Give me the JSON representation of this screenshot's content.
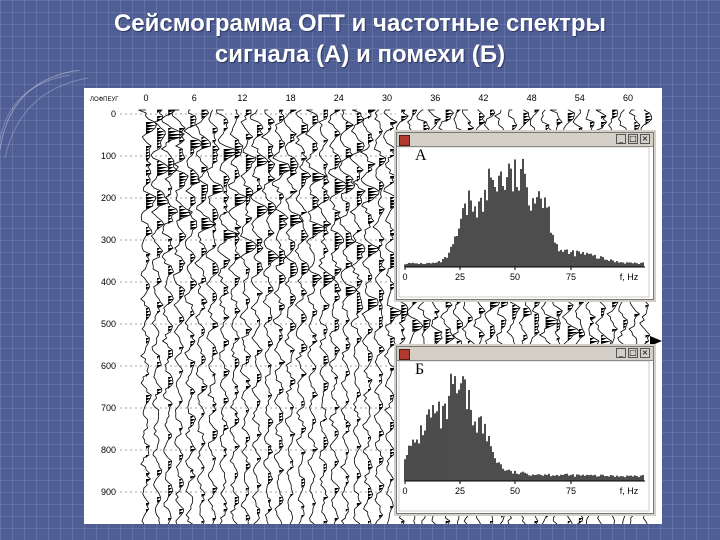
{
  "slide": {
    "title_line1": "Сейсмограмма ОГТ и частотные спектры",
    "title_line2": "сигнала (А) и помехи (Б)"
  },
  "seismogram": {
    "corner_label": "ЛОФПЕУГ",
    "x_ticks": [
      "0",
      "6",
      "12",
      "18",
      "24",
      "30",
      "36",
      "42",
      "48",
      "54",
      "60"
    ],
    "y_ticks": [
      "0",
      "100",
      "200",
      "300",
      "400",
      "500",
      "600",
      "700",
      "800",
      "900"
    ]
  },
  "spectra": [
    {
      "label": "А",
      "x_ticks": [
        "0",
        "25",
        "50",
        "75"
      ],
      "unit": "f, Hz",
      "shape": "signal"
    },
    {
      "label": "Б",
      "x_ticks": [
        "0",
        "25",
        "50",
        "75"
      ],
      "unit": "f, Hz",
      "shape": "noise"
    }
  ],
  "window_buttons": {
    "minimize": "_",
    "maximize": "□",
    "close": "×"
  }
}
